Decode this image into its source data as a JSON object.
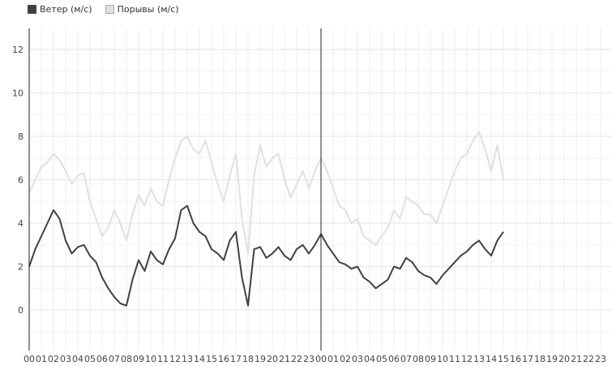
{
  "chart_data": {
    "type": "line",
    "xlabel": "",
    "ylabel": "",
    "ylim": [
      -2,
      13
    ],
    "yticks": [
      0,
      2,
      4,
      6,
      8,
      10,
      12
    ],
    "grid": true,
    "legend_position": "top-left",
    "x_tick_labels": [
      "00",
      "01",
      "02",
      "03",
      "04",
      "05",
      "06",
      "07",
      "08",
      "09",
      "10",
      "11",
      "12",
      "13",
      "14",
      "15",
      "16",
      "17",
      "18",
      "19",
      "20",
      "21",
      "22",
      "23",
      "00",
      "01",
      "02",
      "03",
      "04",
      "05",
      "06",
      "07",
      "08",
      "09",
      "10",
      "11",
      "12",
      "13",
      "14",
      "15",
      "16",
      "17",
      "18",
      "19",
      "20",
      "21",
      "22",
      "23"
    ],
    "x_unit": "hours over two days",
    "series": [
      {
        "name": "Ветер (м/с)",
        "color": "#404040",
        "x": [
          0,
          0.5,
          1,
          1.5,
          2,
          2.5,
          3,
          3.5,
          4,
          4.5,
          5,
          5.5,
          6,
          6.5,
          7,
          7.5,
          8,
          8.5,
          9,
          9.5,
          10,
          10.5,
          11,
          11.5,
          12,
          12.5,
          13,
          13.5,
          14,
          14.5,
          15,
          15.5,
          16,
          16.5,
          17,
          17.5,
          18,
          18.5,
          19,
          19.5,
          20,
          20.5,
          21,
          21.5,
          22,
          22.5,
          23,
          23.5,
          24,
          24.5,
          25,
          25.5,
          26,
          26.5,
          27,
          27.5,
          28,
          28.5,
          29,
          29.5,
          30,
          30.5,
          31,
          31.5,
          32,
          32.5,
          33,
          33.5,
          34,
          34.5,
          35,
          35.5,
          36,
          36.5,
          37,
          37.5,
          38,
          38.5,
          39
        ],
        "values": [
          2.0,
          2.8,
          3.4,
          4.0,
          4.6,
          4.2,
          3.2,
          2.6,
          2.9,
          3.0,
          2.5,
          2.2,
          1.5,
          1.0,
          0.6,
          0.3,
          0.2,
          1.4,
          2.3,
          1.8,
          2.7,
          2.3,
          2.1,
          2.8,
          3.3,
          4.6,
          4.8,
          4.0,
          3.6,
          3.4,
          2.8,
          2.6,
          2.3,
          3.2,
          3.6,
          1.5,
          0.2,
          2.8,
          2.9,
          2.4,
          2.6,
          2.9,
          2.5,
          2.3,
          2.8,
          3.0,
          2.6,
          3.0,
          3.5,
          3.0,
          2.6,
          2.2,
          2.1,
          1.9,
          2.0,
          1.5,
          1.3,
          1.0,
          1.2,
          1.4,
          2.0,
          1.9,
          2.4,
          2.2,
          1.8,
          1.6,
          1.5,
          1.2,
          1.6,
          1.9,
          2.2,
          2.5,
          2.7,
          3.0,
          3.2,
          2.8,
          2.5,
          3.2,
          3.6
        ]
      },
      {
        "name": "Порывы (м/с)",
        "color": "#e0e0e0",
        "x": [
          0,
          0.5,
          1,
          1.5,
          2,
          2.5,
          3,
          3.5,
          4,
          4.5,
          5,
          5.5,
          6,
          6.5,
          7,
          7.5,
          8,
          8.5,
          9,
          9.5,
          10,
          10.5,
          11,
          11.5,
          12,
          12.5,
          13,
          13.5,
          14,
          14.5,
          15,
          15.5,
          16,
          16.5,
          17,
          17.5,
          18,
          18.5,
          19,
          19.5,
          20,
          20.5,
          21,
          21.5,
          22,
          22.5,
          23,
          23.5,
          24,
          24.5,
          25,
          25.5,
          26,
          26.5,
          27,
          27.5,
          28,
          28.5,
          29,
          29.5,
          30,
          30.5,
          31,
          31.5,
          32,
          32.5,
          33,
          33.5,
          34,
          34.5,
          35,
          35.5,
          36,
          36.5,
          37,
          37.5,
          38,
          38.5,
          39
        ],
        "values": [
          5.4,
          6.0,
          6.6,
          6.8,
          7.2,
          6.9,
          6.4,
          5.8,
          6.2,
          6.3,
          5.0,
          4.2,
          3.4,
          3.8,
          4.6,
          4.0,
          3.2,
          4.4,
          5.3,
          4.8,
          5.6,
          5.0,
          4.8,
          6.0,
          7.0,
          7.8,
          8.0,
          7.4,
          7.2,
          7.8,
          6.8,
          5.8,
          5.0,
          6.2,
          7.2,
          4.2,
          2.6,
          6.2,
          7.6,
          6.6,
          7.0,
          7.2,
          6.0,
          5.2,
          5.8,
          6.4,
          5.6,
          6.4,
          7.0,
          6.4,
          5.6,
          4.8,
          4.6,
          4.0,
          4.2,
          3.4,
          3.2,
          3.0,
          3.4,
          3.8,
          4.6,
          4.2,
          5.2,
          5.0,
          4.8,
          4.4,
          4.4,
          4.0,
          4.8,
          5.6,
          6.4,
          7.0,
          7.2,
          7.8,
          8.2,
          7.4,
          6.4,
          7.6,
          6.0
        ]
      }
    ]
  }
}
